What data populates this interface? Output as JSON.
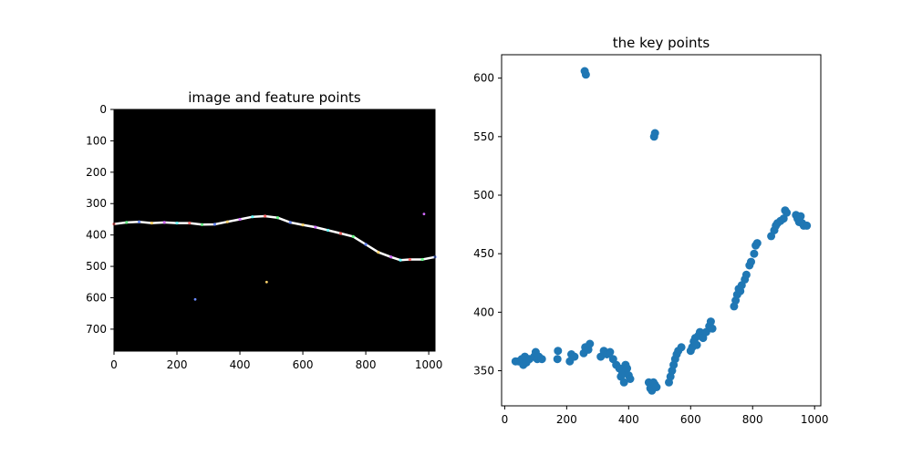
{
  "chart_data": [
    {
      "type": "image",
      "title": "image and feature points",
      "xlim": [
        0,
        1020
      ],
      "ylim": [
        770,
        0
      ],
      "xticks": [
        0,
        200,
        400,
        600,
        800,
        1000
      ],
      "yticks": [
        0,
        100,
        200,
        300,
        400,
        500,
        600,
        700
      ],
      "background_color": "#000000",
      "curve_color": "#ffffff",
      "curve": [
        [
          0,
          365
        ],
        [
          40,
          360
        ],
        [
          80,
          358
        ],
        [
          120,
          362
        ],
        [
          160,
          360
        ],
        [
          200,
          362
        ],
        [
          240,
          362
        ],
        [
          280,
          367
        ],
        [
          320,
          366
        ],
        [
          360,
          358
        ],
        [
          400,
          350
        ],
        [
          440,
          342
        ],
        [
          480,
          340
        ],
        [
          520,
          345
        ],
        [
          560,
          360
        ],
        [
          600,
          368
        ],
        [
          640,
          375
        ],
        [
          680,
          385
        ],
        [
          720,
          395
        ],
        [
          760,
          405
        ],
        [
          800,
          430
        ],
        [
          840,
          455
        ],
        [
          880,
          470
        ],
        [
          910,
          480
        ],
        [
          940,
          478
        ],
        [
          980,
          478
        ],
        [
          1020,
          470
        ]
      ],
      "marker_colors": [
        "#ff6b6b",
        "#6bff8b",
        "#6b8bff",
        "#ffd36b",
        "#d36bff",
        "#6bffff"
      ],
      "isolated_points": [
        [
          258,
          605
        ],
        [
          485,
          550
        ],
        [
          985,
          333
        ]
      ]
    },
    {
      "type": "scatter",
      "title": "the key points",
      "xlim": [
        -10,
        1020
      ],
      "ylim": [
        320,
        620
      ],
      "xticks": [
        0,
        200,
        400,
        600,
        800,
        1000
      ],
      "yticks": [
        350,
        400,
        450,
        500,
        550,
        600
      ],
      "color": "#1f77b4",
      "points": [
        [
          35,
          358
        ],
        [
          45,
          358
        ],
        [
          55,
          360
        ],
        [
          60,
          355
        ],
        [
          65,
          362
        ],
        [
          70,
          357
        ],
        [
          75,
          360
        ],
        [
          80,
          360
        ],
        [
          95,
          362
        ],
        [
          100,
          366
        ],
        [
          105,
          360
        ],
        [
          110,
          362
        ],
        [
          120,
          360
        ],
        [
          170,
          360
        ],
        [
          172,
          367
        ],
        [
          210,
          358
        ],
        [
          215,
          364
        ],
        [
          225,
          362
        ],
        [
          255,
          365
        ],
        [
          260,
          370
        ],
        [
          262,
          603
        ],
        [
          258,
          606
        ],
        [
          270,
          368
        ],
        [
          275,
          373
        ],
        [
          310,
          362
        ],
        [
          320,
          367
        ],
        [
          330,
          364
        ],
        [
          340,
          366
        ],
        [
          350,
          360
        ],
        [
          360,
          355
        ],
        [
          370,
          352
        ],
        [
          375,
          345
        ],
        [
          380,
          348
        ],
        [
          385,
          340
        ],
        [
          390,
          355
        ],
        [
          395,
          352
        ],
        [
          400,
          346
        ],
        [
          405,
          343
        ],
        [
          465,
          340
        ],
        [
          470,
          335
        ],
        [
          475,
          333
        ],
        [
          480,
          340
        ],
        [
          485,
          338
        ],
        [
          482,
          550
        ],
        [
          485,
          553
        ],
        [
          490,
          336
        ],
        [
          530,
          340
        ],
        [
          535,
          345
        ],
        [
          540,
          350
        ],
        [
          545,
          355
        ],
        [
          550,
          360
        ],
        [
          555,
          364
        ],
        [
          560,
          367
        ],
        [
          570,
          370
        ],
        [
          600,
          367
        ],
        [
          605,
          370
        ],
        [
          610,
          375
        ],
        [
          615,
          378
        ],
        [
          620,
          372
        ],
        [
          625,
          380
        ],
        [
          630,
          383
        ],
        [
          640,
          378
        ],
        [
          650,
          383
        ],
        [
          660,
          388
        ],
        [
          665,
          392
        ],
        [
          670,
          386
        ],
        [
          740,
          405
        ],
        [
          745,
          410
        ],
        [
          750,
          415
        ],
        [
          755,
          420
        ],
        [
          760,
          418
        ],
        [
          765,
          423
        ],
        [
          775,
          428
        ],
        [
          780,
          432
        ],
        [
          790,
          440
        ],
        [
          795,
          443
        ],
        [
          805,
          450
        ],
        [
          810,
          457
        ],
        [
          815,
          459
        ],
        [
          860,
          465
        ],
        [
          870,
          470
        ],
        [
          875,
          474
        ],
        [
          880,
          476
        ],
        [
          890,
          478
        ],
        [
          900,
          480
        ],
        [
          905,
          487
        ],
        [
          910,
          485
        ],
        [
          940,
          483
        ],
        [
          945,
          480
        ],
        [
          950,
          477
        ],
        [
          955,
          482
        ],
        [
          960,
          476
        ],
        [
          965,
          474
        ],
        [
          975,
          474
        ]
      ]
    }
  ]
}
